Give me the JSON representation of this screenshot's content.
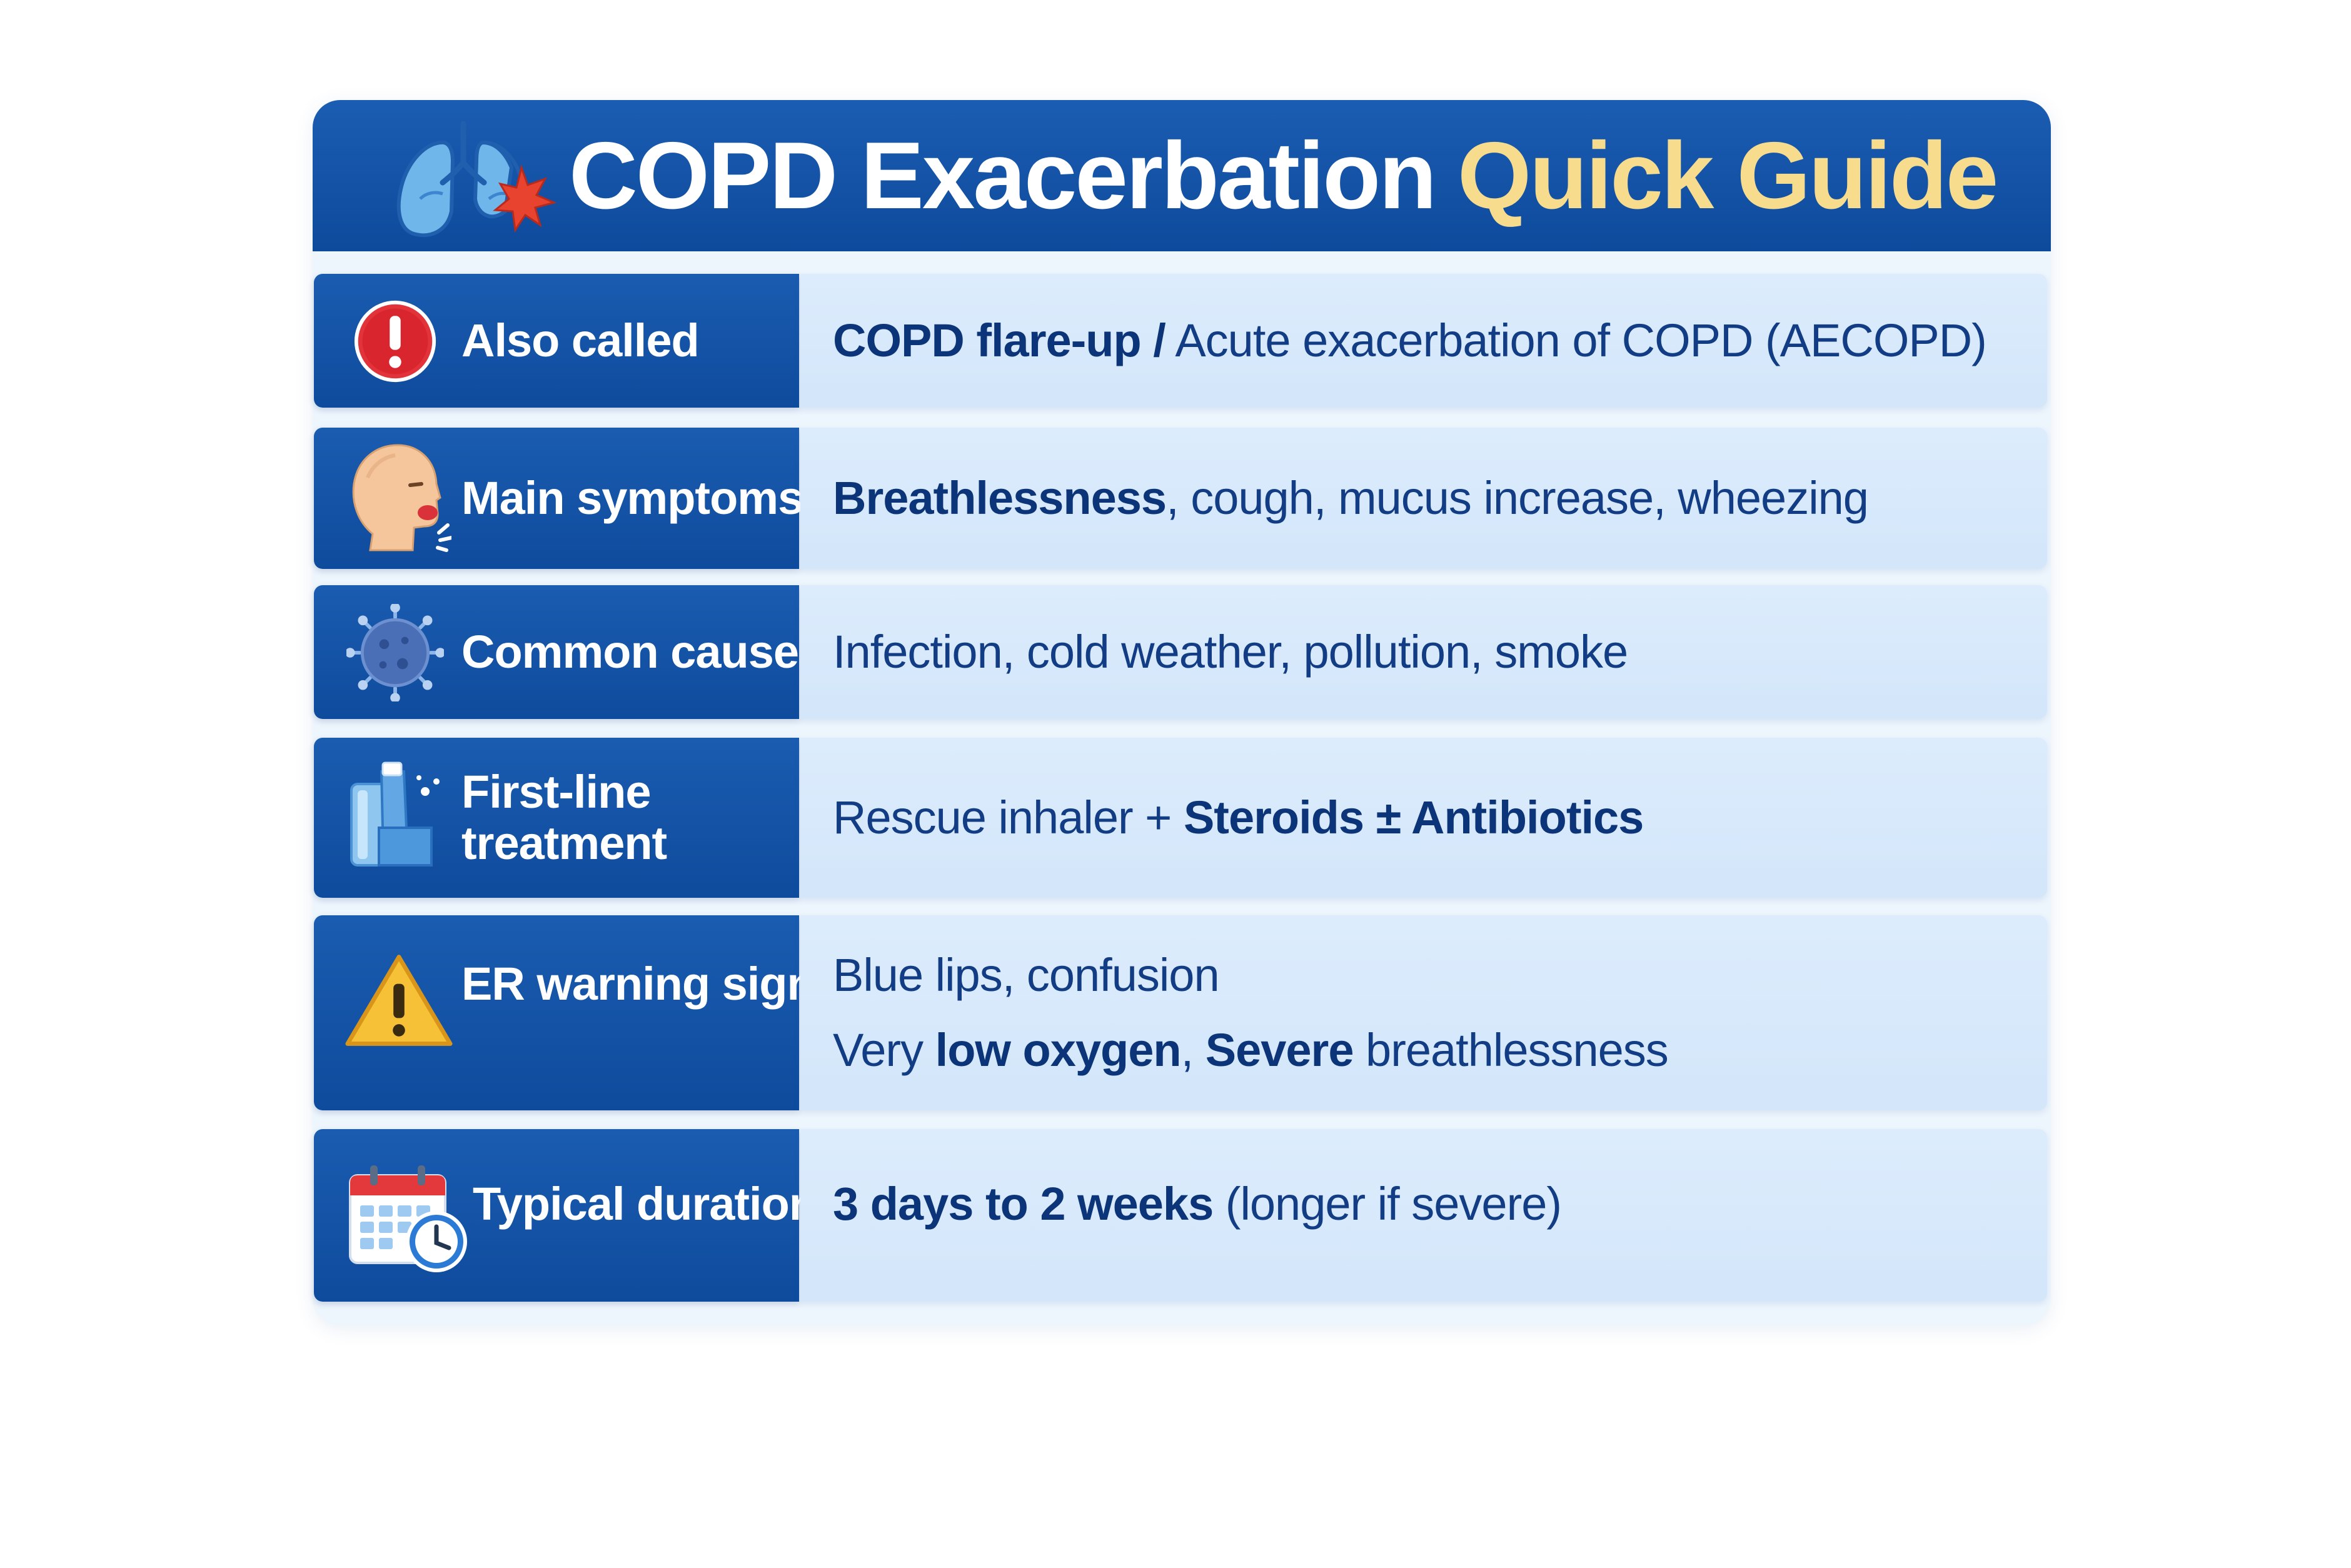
{
  "header": {
    "title_main": "COPD Exacerbation",
    "title_accent": "Quick Guide",
    "icon": "lungs-icon"
  },
  "rows": [
    {
      "label": "Also called",
      "icon": "exclamation-circle-icon",
      "segments": [
        {
          "text": "COPD flare-up /",
          "bold": true
        },
        {
          "text": " Acute exacerbation of COPD (AECOPD)",
          "bold": false
        }
      ]
    },
    {
      "label": "Main symptoms",
      "icon": "coughing-face-icon",
      "segments": [
        {
          "text": "Breathlessness",
          "bold": true
        },
        {
          "text": ", cough, mucus increase, wheezing",
          "bold": false
        }
      ]
    },
    {
      "label": "Common causes",
      "icon": "virus-icon",
      "segments": [
        {
          "text": "Infection, cold weather, pollution, smoke",
          "bold": false
        }
      ]
    },
    {
      "label_line1": "First-line",
      "label_line2": "treatment",
      "icon": "inhaler-icon",
      "segments": [
        {
          "text": "Rescue inhaler + ",
          "bold": false
        },
        {
          "text": "Steroids ± Antibiotics",
          "bold": true
        }
      ]
    },
    {
      "label": "ER warning signs",
      "icon": "warning-triangle-icon",
      "line1": [
        {
          "text": "Blue lips, confusion",
          "bold": false
        }
      ],
      "line2": [
        {
          "text": "Very ",
          "bold": false
        },
        {
          "text": "low oxygen",
          "bold": true
        },
        {
          "text": ", ",
          "bold": false
        },
        {
          "text": "Severe",
          "bold": true
        },
        {
          "text": " breathlessness",
          "bold": false
        }
      ]
    },
    {
      "label": "Typical duration",
      "icon": "calendar-clock-icon",
      "segments": [
        {
          "text": "3 days to 2 weeks",
          "bold": true
        },
        {
          "text": " (longer if severe)",
          "bold": false
        }
      ]
    }
  ]
}
